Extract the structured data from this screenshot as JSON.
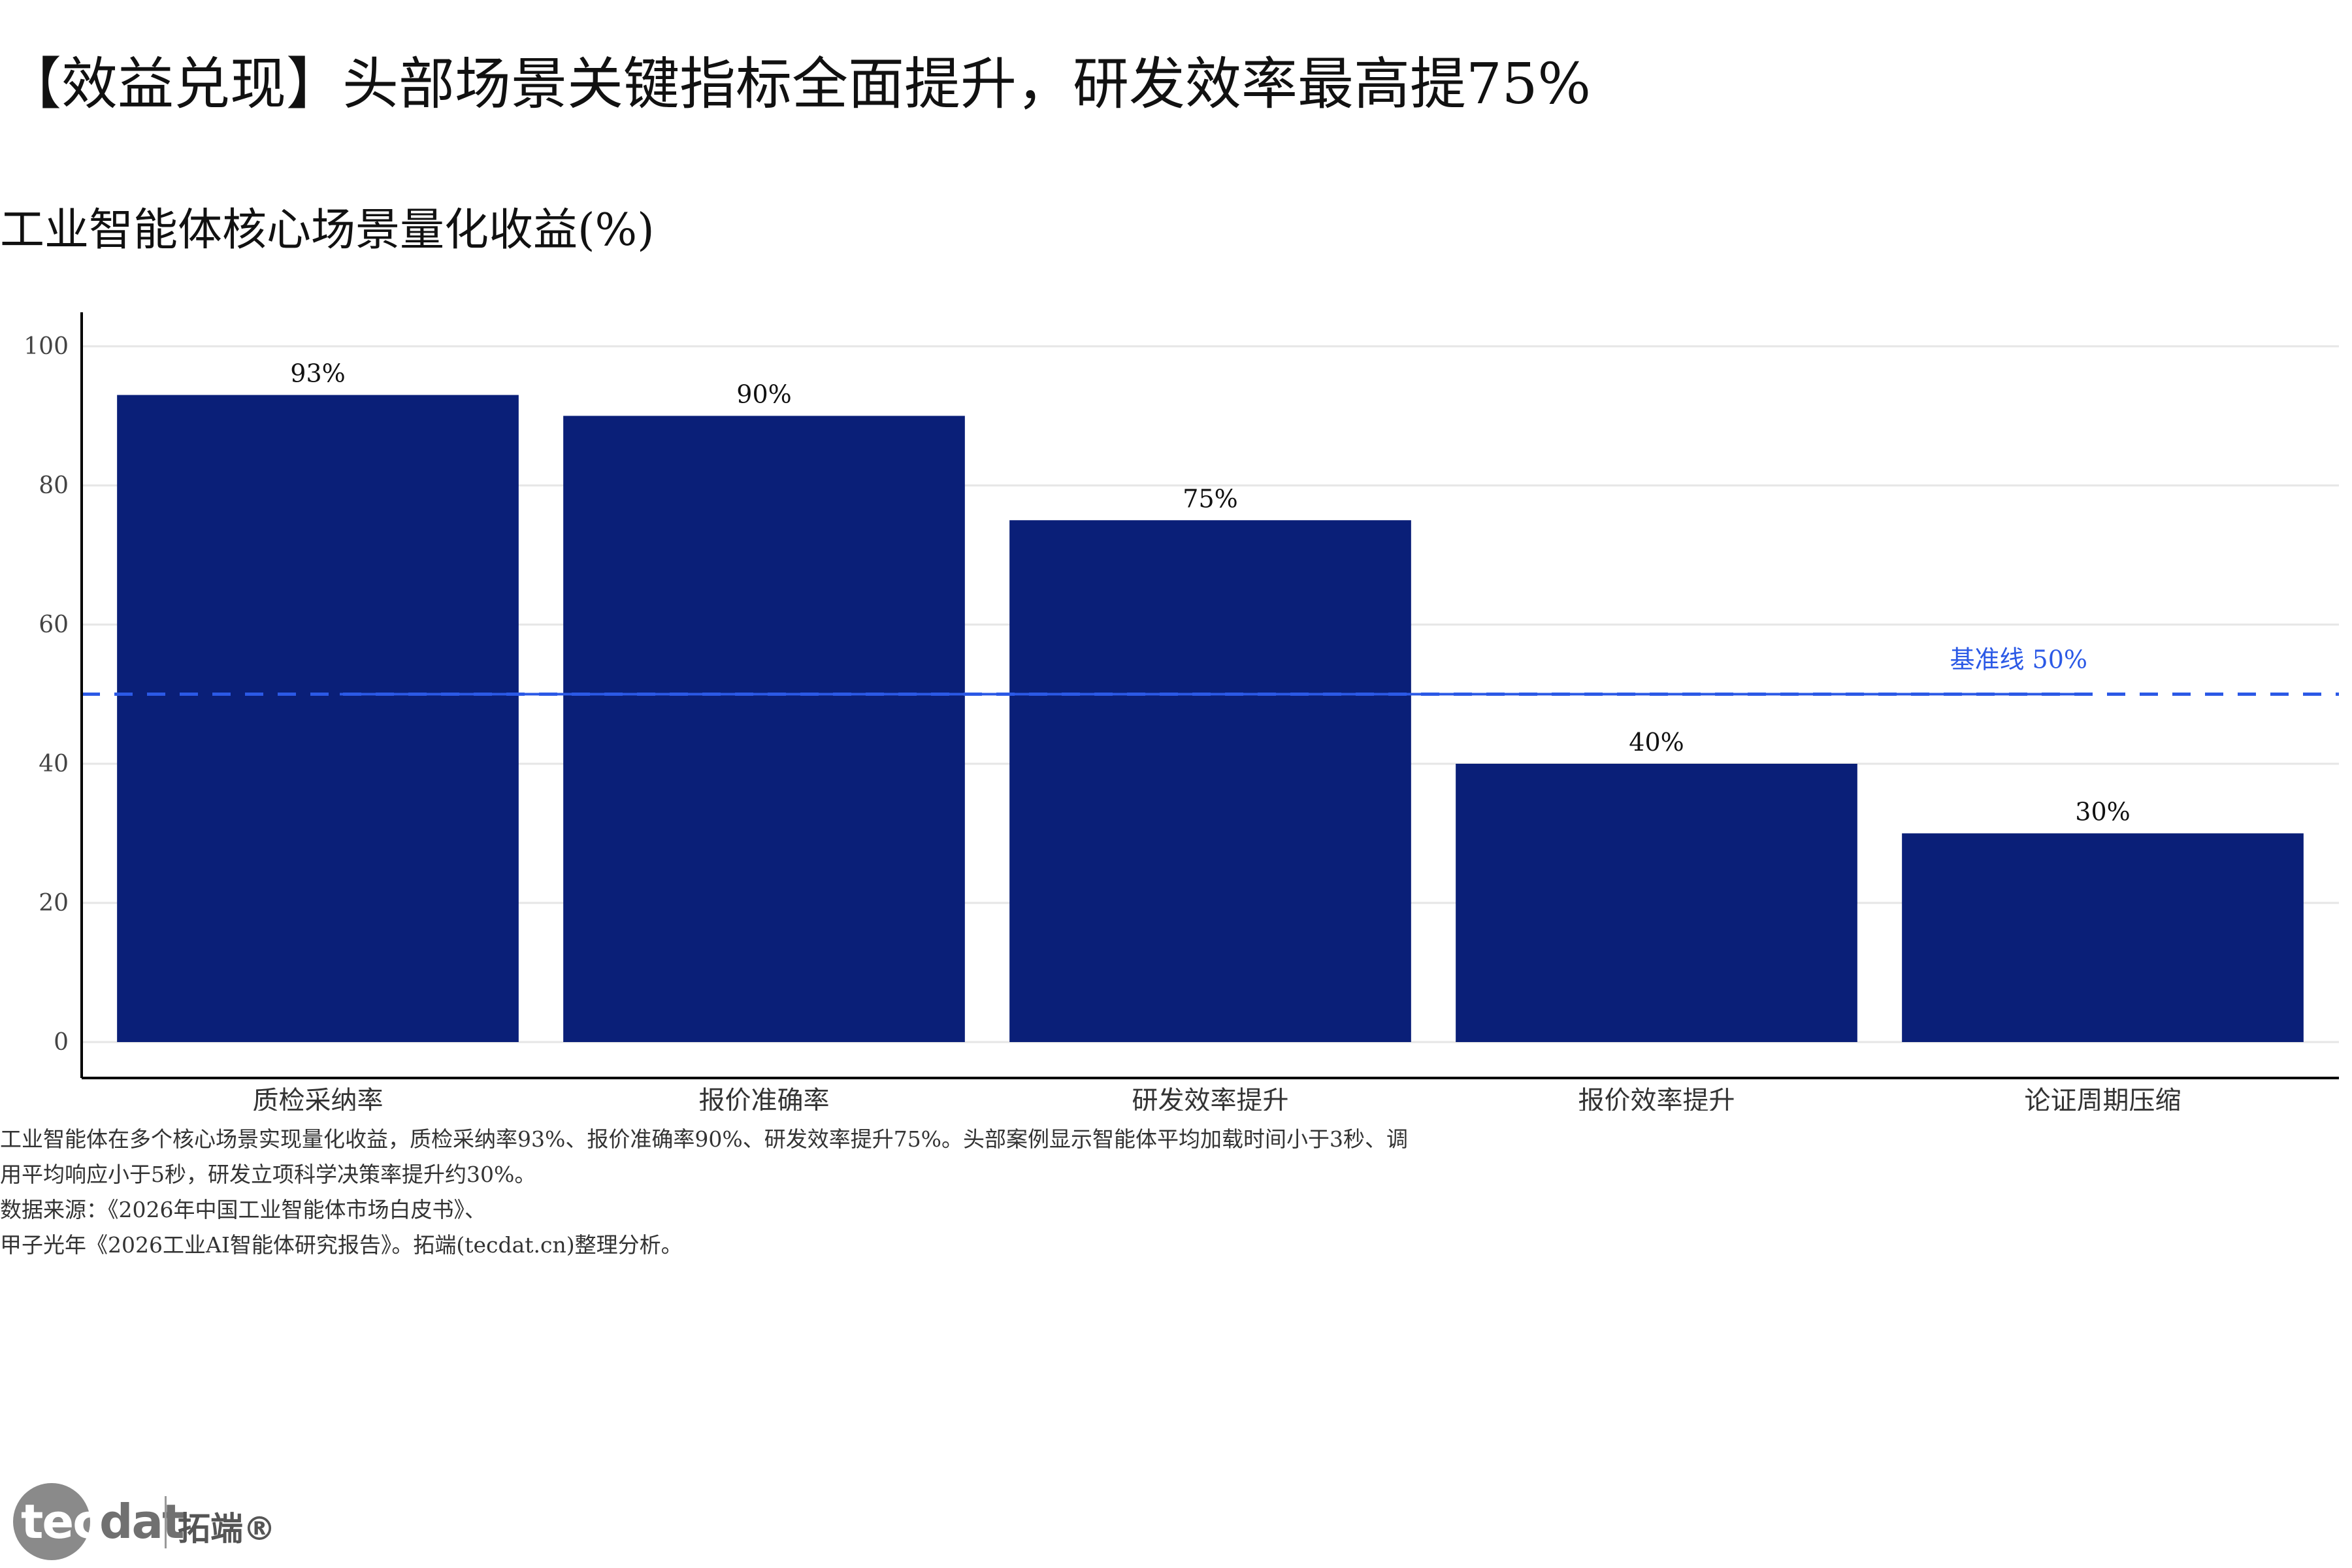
{
  "headline": "【效益兑现】头部场景关键指标全面提升，研发效率最高提75%",
  "chart_data": {
    "type": "bar",
    "title": "工业智能体核心场景量化收益(%)",
    "categories": [
      "质检采纳率",
      "报价准确率",
      "研发效率提升",
      "报价效率提升",
      "论证周期压缩"
    ],
    "values": [
      93,
      90,
      75,
      40,
      30
    ],
    "data_labels": [
      "93%",
      "90%",
      "75%",
      "40%",
      "30%"
    ],
    "ylim": [
      0,
      100
    ],
    "yticks": [
      0,
      20,
      40,
      60,
      80,
      100
    ],
    "grid": true,
    "bar_color": "#0a1f78",
    "reference_line": {
      "value": 50,
      "label": "基准线 50%",
      "color": "#2b59e6",
      "style": "dashed"
    }
  },
  "note": {
    "lines": [
      "工业智能体在多个核心场景实现量化收益，质检采纳率93%、报价准确率90%、研发效率提升75%。头部案例显示智能体平均加载时间小于3秒、调",
      "用平均响应小于5秒，研发立项科学决策率提升约30%。",
      "数据来源：《2026年中国工业智能体市场白皮书》、",
      "甲子光年《2026工业AI智能体研究报告》。拓端(tecdat.cn)整理分析。"
    ]
  },
  "logo": {
    "word_a": "tec",
    "word_b": "dat",
    "cn": "拓端®"
  }
}
